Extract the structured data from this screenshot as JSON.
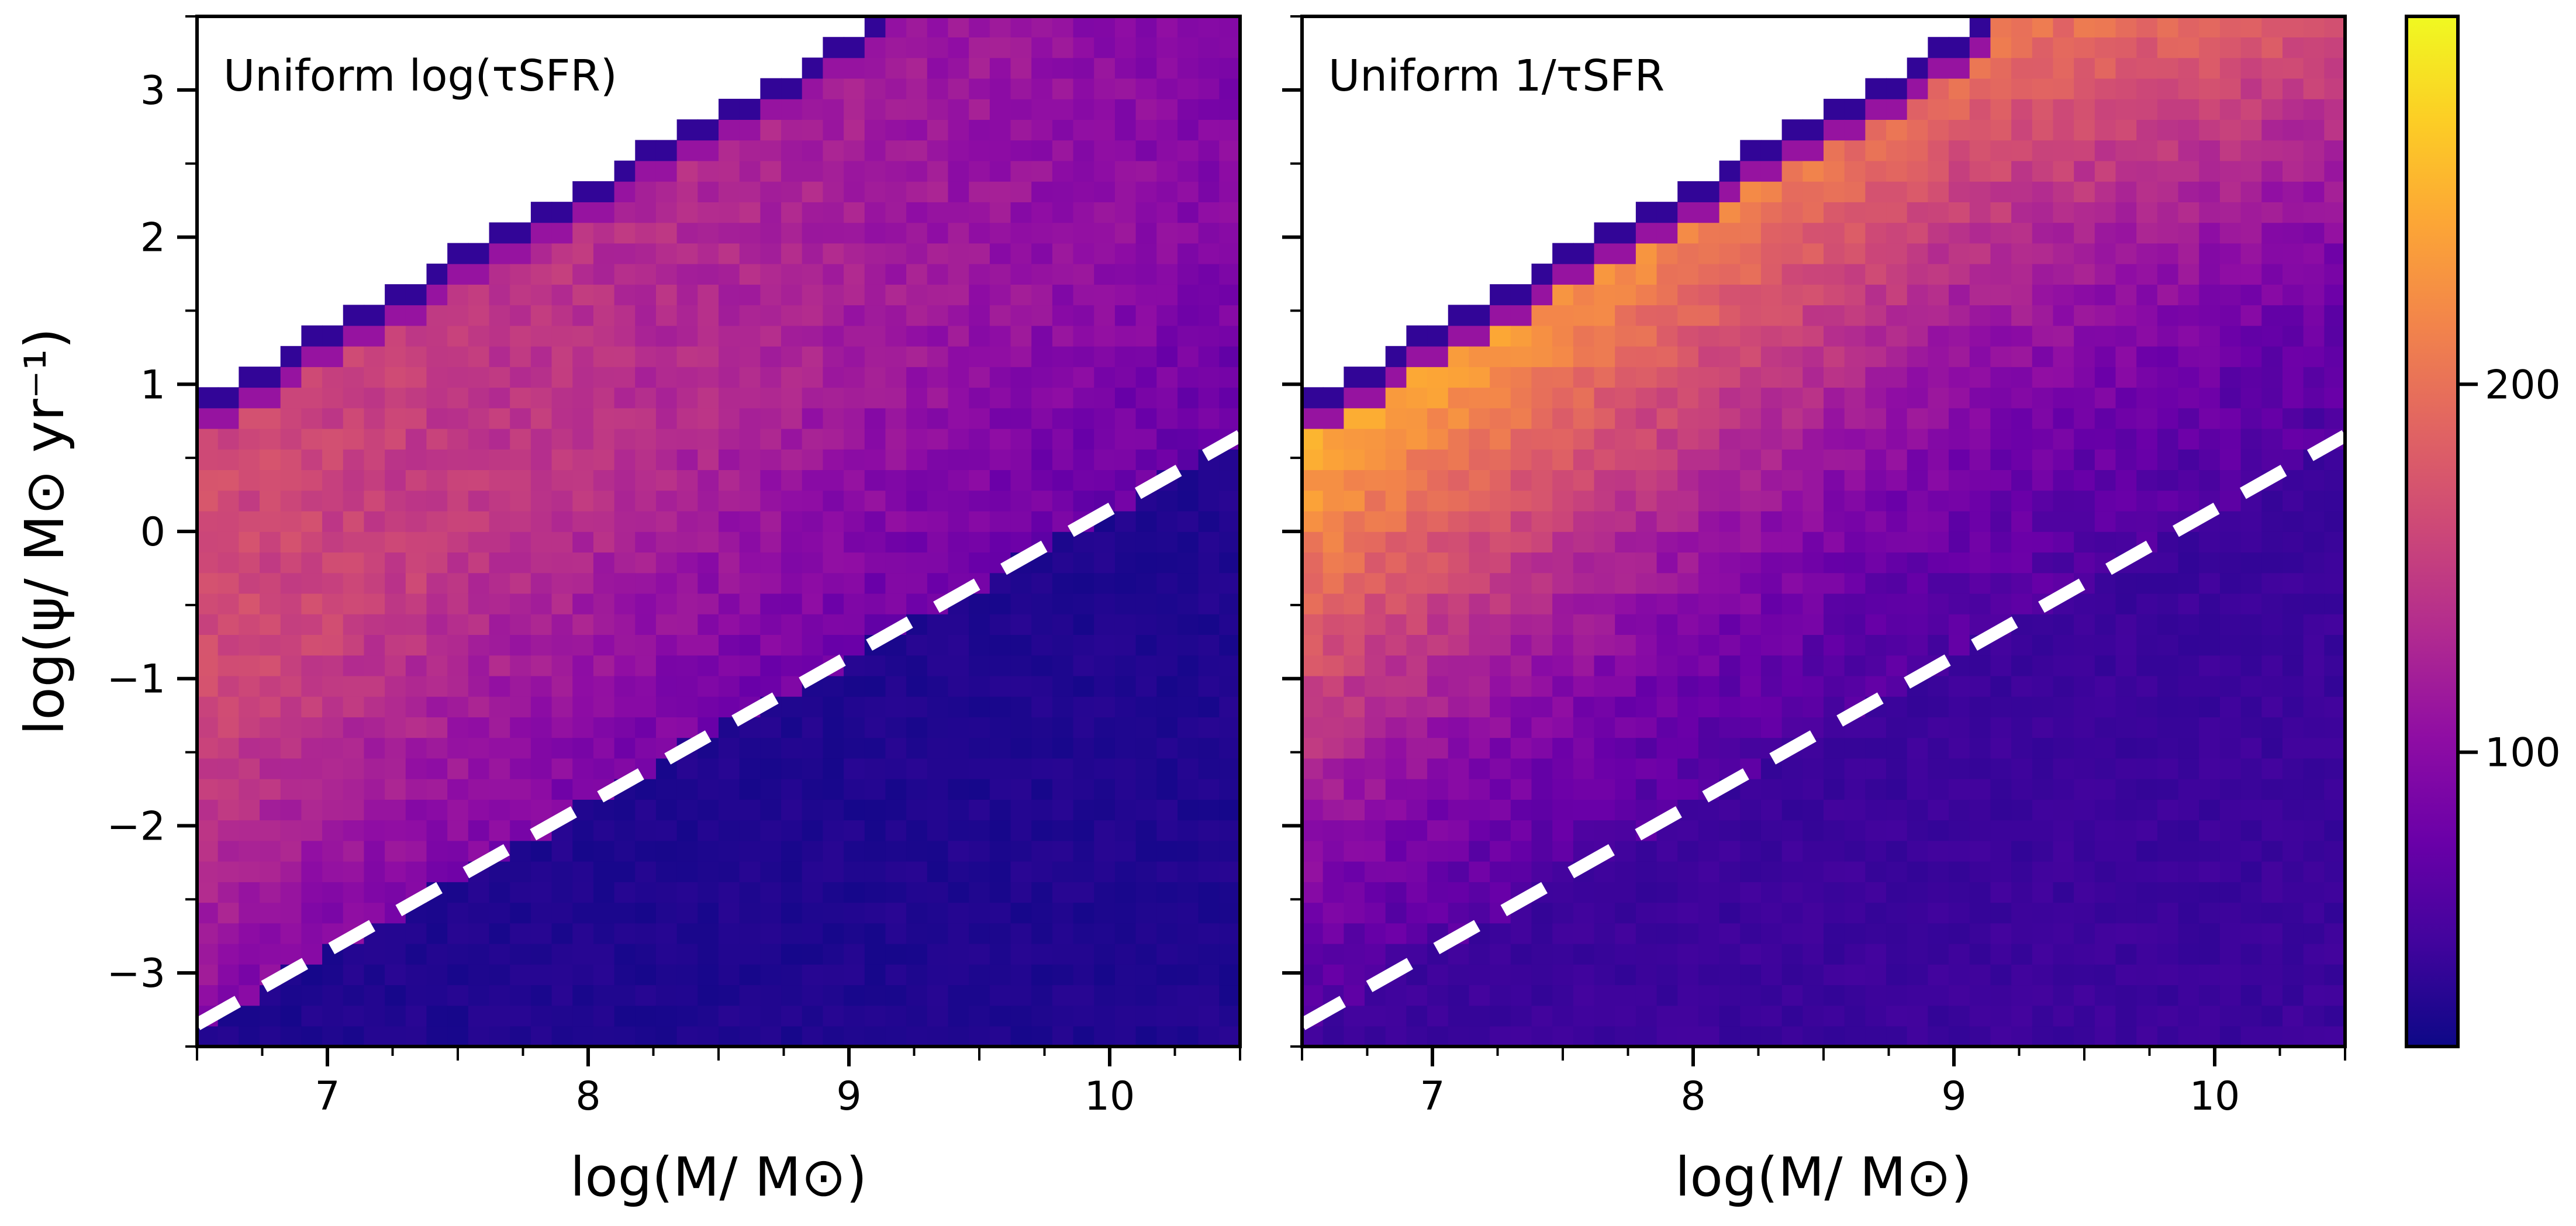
{
  "chart_data": {
    "type": "heatmap",
    "xlabel": "log(M/ M⊙)",
    "ylabel": "log(ψ/ M⊙ yr⁻¹)",
    "xlim": [
      6.5,
      10.5
    ],
    "ylim": [
      -3.5,
      3.5
    ],
    "x_ticks": [
      7,
      8,
      9,
      10
    ],
    "y_ticks": [
      3,
      2,
      1,
      0,
      -1,
      -2,
      -3
    ],
    "bins": {
      "x_count": 50,
      "y_count": 50
    },
    "upper_boundary": {
      "x": [
        6.5,
        9.1
      ],
      "y": [
        0.95,
        3.5
      ]
    },
    "colormap": "plasma",
    "colorbar": {
      "ticks": [
        200,
        100
      ],
      "range": [
        20,
        300
      ]
    },
    "dashed_line": {
      "x": [
        6.5,
        10.5
      ],
      "y": [
        -3.35,
        0.65
      ],
      "color": "#ffffff"
    },
    "panels": [
      {
        "annotation": "Uniform log(τSFR)",
        "counts_above_line": {
          "at_left": 165,
          "at_right": 95
        },
        "counts_below_line": 30,
        "boundary_column_counts": [
          40,
          110
        ]
      },
      {
        "annotation": "Uniform 1/τSFR",
        "counts_above_line": {
          "at_left_top": 275,
          "at_right_top": 175,
          "near_line": 60
        },
        "counts_below_line": 45,
        "boundary_column_counts": [
          40,
          110
        ]
      }
    ]
  }
}
